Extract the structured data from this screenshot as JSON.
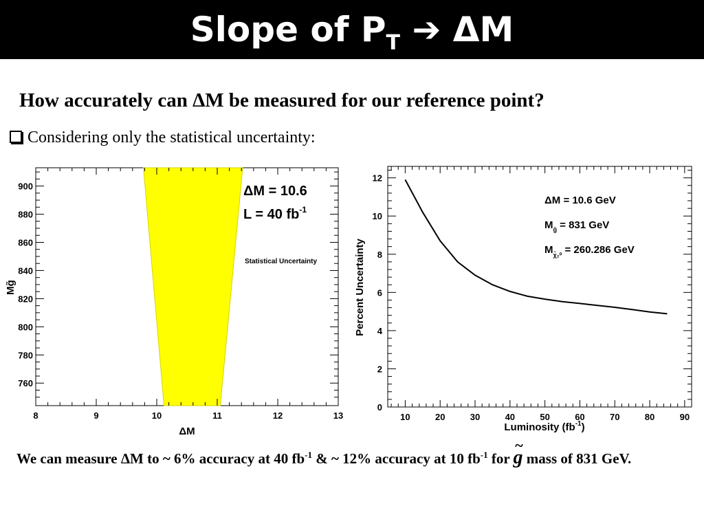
{
  "header": {
    "title_prefix": "Slope of P",
    "title_sub": "T",
    "title_arrow": "➔",
    "title_suffix": "ΔM"
  },
  "question": "How accurately can ΔM be measured for our reference point?",
  "bullet": "Considering only the statistical uncertainty:",
  "chart_data": [
    {
      "type": "area",
      "xlabel": "ΔM",
      "ylabel": "Mg̃",
      "xlim": [
        8,
        13
      ],
      "ylim": [
        744,
        913
      ],
      "xticks": [
        "8",
        "9",
        "10",
        "11",
        "12",
        "13"
      ],
      "yticks": [
        "760",
        "780",
        "800",
        "820",
        "840",
        "860",
        "880",
        "900"
      ],
      "annotations": [
        "ΔM = 10.6",
        "L = 40 fb",
        "-1",
        "Statistical Uncertainty"
      ],
      "band_color": "#ffff00",
      "band": [
        {
          "y": 744,
          "lo": 10.12,
          "hi": 11.05
        },
        {
          "y": 913,
          "lo": 9.78,
          "hi": 11.42
        }
      ]
    },
    {
      "type": "line",
      "xlabel": "Luminosity (fb",
      "xlabel_sup": "-1",
      "xlabel_close": ")",
      "ylabel": "Percent Uncertainty",
      "xlim": [
        5,
        92
      ],
      "ylim": [
        0,
        12.6
      ],
      "xticks": [
        "10",
        "20",
        "30",
        "40",
        "50",
        "60",
        "70",
        "80",
        "90"
      ],
      "yticks": [
        "0",
        "2",
        "4",
        "6",
        "8",
        "10",
        "12"
      ],
      "annotations": {
        "dm": "ΔM = 10.6 GeV",
        "mg": "M",
        "mg_sub": "g̃",
        "mg_val": " = 831 GeV",
        "mchi": "M",
        "mchi_sub": "χ̃₂⁰",
        "mchi_val": " = 260.286 GeV"
      },
      "x": [
        10,
        15,
        20,
        25,
        30,
        35,
        40,
        45,
        50,
        55,
        60,
        65,
        70,
        75,
        80,
        85
      ],
      "y": [
        11.9,
        10.2,
        8.7,
        7.6,
        6.9,
        6.4,
        6.05,
        5.8,
        5.65,
        5.52,
        5.42,
        5.32,
        5.22,
        5.1,
        4.98,
        4.88
      ]
    }
  ],
  "conclusion": {
    "part1": "We can measure ΔM to  ~ 6% accuracy at 40 fb",
    "sup1": "-1",
    "part2": " & ~ 12% accuracy at 10 fb",
    "sup2": "-1",
    "part3": " for ",
    "gluino_tilde": "~",
    "gluino_g": "g",
    "part4": " mass of 831 GeV."
  }
}
